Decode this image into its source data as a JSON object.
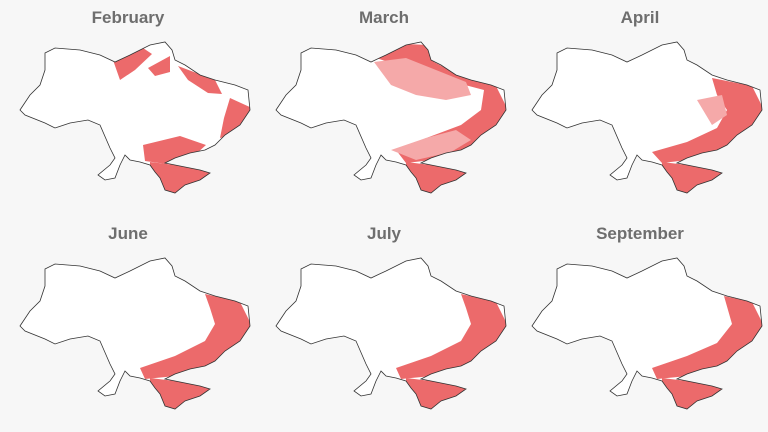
{
  "panels": [
    {
      "month": "February"
    },
    {
      "month": "March"
    },
    {
      "month": "April"
    },
    {
      "month": "June"
    },
    {
      "month": "July"
    },
    {
      "month": "September"
    }
  ],
  "colors": {
    "occupied": "#ec6a6b",
    "contested": "#f5a9a9",
    "land": "#ffffff",
    "border": "#333333",
    "background": "#f7f7f7",
    "title": "#6e6e6e"
  }
}
